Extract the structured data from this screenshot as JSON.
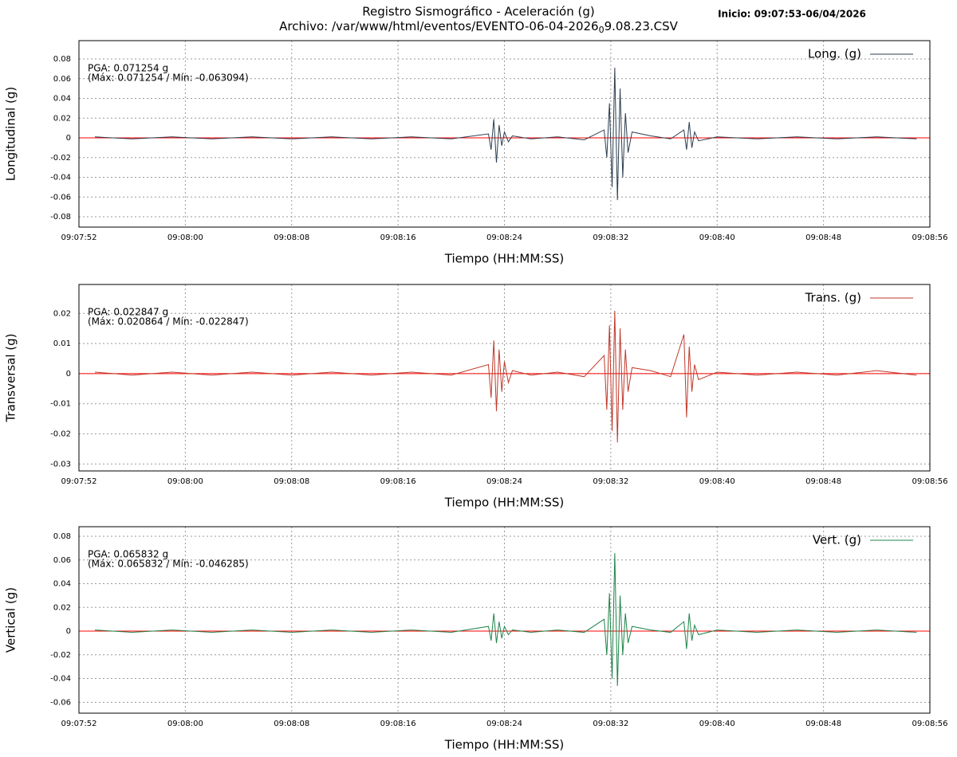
{
  "chart_data": [
    {
      "type": "line",
      "title": "Registro Sismográfico - Aceleración (g)",
      "subtitle": [
        "Archivo: /var/www/html/eventos/EVENTO-06-04-2026",
        "0",
        "9.08.23.CSV"
      ],
      "note": "Inicio: 09:07:53-06/04/2026",
      "xlabel": "Tiempo (HH:MM:SS)",
      "ylabel": "Longitudinal (g)",
      "annotations": [
        "PGA: 0.071254 g",
        "(Máx: 0.071254 / Mín: -0.063094)"
      ],
      "annotation_color": "#0000cc",
      "legend": "upper right",
      "grid": true,
      "hline": {
        "value": 0,
        "color": "#ff0000"
      },
      "xlim": [
        "09:07:52",
        "09:08:56"
      ],
      "xticks": [
        "09:07:52",
        "09:08:00",
        "09:08:08",
        "09:08:16",
        "09:08:24",
        "09:08:32",
        "09:08:40",
        "09:08:48",
        "09:08:56"
      ],
      "ylim": [
        -0.0905,
        0.0986
      ],
      "yticks": [
        -0.08,
        -0.06,
        -0.04,
        -0.02,
        0,
        0.02,
        0.04,
        0.06,
        0.08
      ],
      "x": [
        "09:07:53.2",
        "09:07:56.0",
        "09:07:59.0",
        "09:08:02.0",
        "09:08:05.0",
        "09:08:08.0",
        "09:08:11.0",
        "09:08:14.0",
        "09:08:17.0",
        "09:08:20.0",
        "09:08:22.8",
        "09:08:23.0",
        "09:08:23.2",
        "09:08:23.4",
        "09:08:23.6",
        "09:08:23.8",
        "09:08:24.0",
        "09:08:24.3",
        "09:08:24.6",
        "09:08:26.0",
        "09:08:28.0",
        "09:08:30.0",
        "09:08:31.5",
        "09:08:31.7",
        "09:08:31.9",
        "09:08:32.1",
        "09:08:32.3",
        "09:08:32.5",
        "09:08:32.7",
        "09:08:32.9",
        "09:08:33.1",
        "09:08:33.3",
        "09:08:33.6",
        "09:08:35.0",
        "09:08:36.5",
        "09:08:37.5",
        "09:08:37.7",
        "09:08:37.9",
        "09:08:38.1",
        "09:08:38.3",
        "09:08:38.6",
        "09:08:40.0",
        "09:08:43.0",
        "09:08:46.0",
        "09:08:49.0",
        "09:08:52.0",
        "09:08:55.0"
      ],
      "series": [
        {
          "name": "Long. (g)",
          "color": "#2c3e50",
          "values": [
            0.001,
            -0.001,
            0.001,
            -0.001,
            0.001,
            -0.001,
            0.001,
            -0.001,
            0.001,
            -0.001,
            0.004,
            -0.012,
            0.019,
            -0.025,
            0.013,
            -0.008,
            0.006,
            -0.004,
            0.002,
            -0.001,
            0.001,
            -0.002,
            0.008,
            -0.02,
            0.035,
            -0.05,
            0.071254,
            -0.063094,
            0.05,
            -0.04,
            0.025,
            -0.015,
            0.006,
            0.002,
            -0.001,
            0.008,
            -0.012,
            0.016,
            -0.01,
            0.006,
            -0.003,
            0.001,
            -0.001,
            0.001,
            -0.001,
            0.001,
            -0.001
          ]
        }
      ]
    },
    {
      "type": "line",
      "xlabel": "Tiempo (HH:MM:SS)",
      "ylabel": "Transversal (g)",
      "annotations": [
        "PGA: 0.022847 g",
        "(Máx: 0.020864 / Mín: -0.022847)"
      ],
      "annotation_color": "#ff0000",
      "legend": "upper right",
      "grid": true,
      "hline": {
        "value": 0,
        "color": "#ff0000"
      },
      "xlim": [
        "09:07:52",
        "09:08:56"
      ],
      "xticks": [
        "09:07:52",
        "09:08:00",
        "09:08:08",
        "09:08:16",
        "09:08:24",
        "09:08:32",
        "09:08:40",
        "09:08:48",
        "09:08:56"
      ],
      "ylim": [
        -0.0323,
        0.0296
      ],
      "yticks": [
        -0.03,
        -0.02,
        -0.01,
        0,
        0.01,
        0.02
      ],
      "x": [
        "09:07:53.2",
        "09:07:56.0",
        "09:07:59.0",
        "09:08:02.0",
        "09:08:05.0",
        "09:08:08.0",
        "09:08:11.0",
        "09:08:14.0",
        "09:08:17.0",
        "09:08:20.0",
        "09:08:22.8",
        "09:08:23.0",
        "09:08:23.2",
        "09:08:23.4",
        "09:08:23.6",
        "09:08:23.8",
        "09:08:24.0",
        "09:08:24.3",
        "09:08:24.6",
        "09:08:26.0",
        "09:08:28.0",
        "09:08:30.0",
        "09:08:31.5",
        "09:08:31.7",
        "09:08:31.9",
        "09:08:32.1",
        "09:08:32.3",
        "09:08:32.5",
        "09:08:32.7",
        "09:08:32.9",
        "09:08:33.1",
        "09:08:33.3",
        "09:08:33.6",
        "09:08:35.0",
        "09:08:36.5",
        "09:08:37.5",
        "09:08:37.7",
        "09:08:37.9",
        "09:08:38.1",
        "09:08:38.3",
        "09:08:38.6",
        "09:08:40.0",
        "09:08:43.0",
        "09:08:46.0",
        "09:08:49.0",
        "09:08:52.0",
        "09:08:55.0"
      ],
      "series": [
        {
          "name": "Trans. (g)",
          "color": "#c0392b",
          "values": [
            0.0005,
            -0.0005,
            0.0005,
            -0.0005,
            0.0005,
            -0.0005,
            0.0005,
            -0.0005,
            0.0005,
            -0.0005,
            0.003,
            -0.008,
            0.011,
            -0.0125,
            0.008,
            -0.006,
            0.004,
            -0.003,
            0.001,
            -0.0005,
            0.0005,
            -0.001,
            0.006,
            -0.012,
            0.016,
            -0.019,
            0.020864,
            -0.022847,
            0.015,
            -0.012,
            0.008,
            -0.006,
            0.002,
            0.001,
            -0.001,
            0.013,
            -0.0145,
            0.009,
            -0.006,
            0.003,
            -0.002,
            0.0005,
            -0.0005,
            0.0005,
            -0.0005,
            0.001,
            -0.0005
          ]
        }
      ]
    },
    {
      "type": "line",
      "xlabel": "Tiempo (HH:MM:SS)",
      "ylabel": "Vertical (g)",
      "annotations": [
        "PGA: 0.065832 g",
        "(Máx: 0.065832 / Mín: -0.046285)"
      ],
      "annotation_color": "#006400",
      "legend": "upper right",
      "grid": true,
      "hline": {
        "value": 0,
        "color": "#ff0000"
      },
      "xlim": [
        "09:07:52",
        "09:08:56"
      ],
      "xticks": [
        "09:07:52",
        "09:08:00",
        "09:08:08",
        "09:08:16",
        "09:08:24",
        "09:08:32",
        "09:08:40",
        "09:08:48",
        "09:08:56"
      ],
      "ylim": [
        -0.0692,
        0.0881
      ],
      "yticks": [
        -0.06,
        -0.04,
        -0.02,
        0,
        0.02,
        0.04,
        0.06,
        0.08
      ],
      "x": [
        "09:07:53.2",
        "09:07:56.0",
        "09:07:59.0",
        "09:08:02.0",
        "09:08:05.0",
        "09:08:08.0",
        "09:08:11.0",
        "09:08:14.0",
        "09:08:17.0",
        "09:08:20.0",
        "09:08:22.8",
        "09:08:23.0",
        "09:08:23.2",
        "09:08:23.4",
        "09:08:23.6",
        "09:08:23.8",
        "09:08:24.0",
        "09:08:24.3",
        "09:08:24.6",
        "09:08:26.0",
        "09:08:28.0",
        "09:08:30.0",
        "09:08:31.5",
        "09:08:31.7",
        "09:08:31.9",
        "09:08:32.1",
        "09:08:32.3",
        "09:08:32.5",
        "09:08:32.7",
        "09:08:32.9",
        "09:08:33.1",
        "09:08:33.3",
        "09:08:33.6",
        "09:08:35.0",
        "09:08:36.5",
        "09:08:37.5",
        "09:08:37.7",
        "09:08:37.9",
        "09:08:38.1",
        "09:08:38.3",
        "09:08:38.6",
        "09:08:40.0",
        "09:08:43.0",
        "09:08:46.0",
        "09:08:49.0",
        "09:08:52.0",
        "09:08:55.0"
      ],
      "series": [
        {
          "name": "Vert. (g)",
          "color": "#1e8449",
          "values": [
            0.001,
            -0.001,
            0.001,
            -0.001,
            0.001,
            -0.001,
            0.001,
            -0.001,
            0.001,
            -0.001,
            0.004,
            -0.008,
            0.015,
            -0.01,
            0.008,
            -0.006,
            0.004,
            -0.003,
            0.001,
            -0.001,
            0.001,
            -0.001,
            0.01,
            -0.02,
            0.032,
            -0.04,
            0.065832,
            -0.046285,
            0.03,
            -0.02,
            0.015,
            -0.01,
            0.004,
            0.001,
            -0.001,
            0.008,
            -0.015,
            0.015,
            -0.008,
            0.005,
            -0.003,
            0.001,
            -0.001,
            0.001,
            -0.001,
            0.001,
            -0.001
          ]
        }
      ]
    }
  ]
}
